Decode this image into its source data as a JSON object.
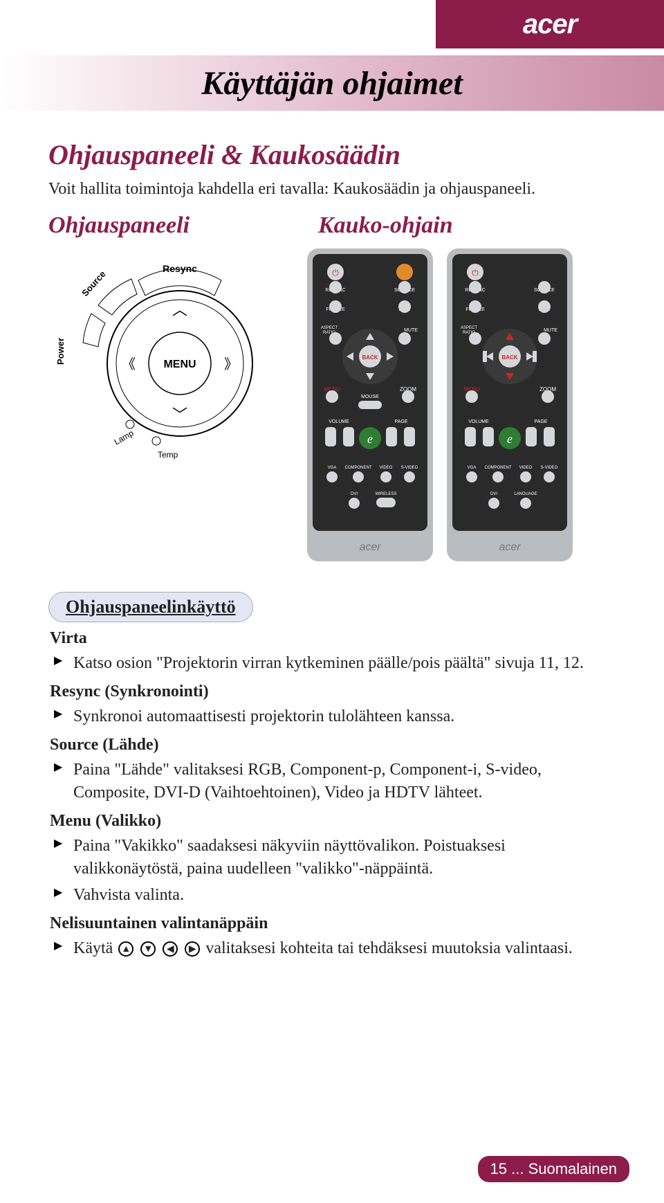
{
  "brand": "acer",
  "banner_title": "Käyttäjän ohjaimet",
  "section_title": "Ohjauspaneeli & Kaukosäädin",
  "intro": "Voit hallita toimintoja kahdella eri tavalla: Kaukosäädin ja ohjauspaneeli.",
  "col_left": "Ohjauspaneeli",
  "col_right": "Kauko-ohjain",
  "panel": {
    "resync": "Resync",
    "source": "Source",
    "power": "Power",
    "menu": "MENU",
    "lamp": "Lamp",
    "temp": "Temp"
  },
  "remote": {
    "labels": [
      "RESYNC",
      "SOURCE",
      "FREEZE",
      "HIDE",
      "ASPECT RATIO",
      "MUTE",
      "BACK",
      "MENU",
      "ZOOM",
      "MOUSE",
      "VOLUME",
      "PAGE",
      "VGA",
      "COMPONENT",
      "VIDEO",
      "S-VIDEO",
      "DVI",
      "WIRELESS",
      "LANGUAGE"
    ],
    "body_color": "#2a2a2a",
    "frame_color": "#b9bcc1",
    "accent_color": "#c62828",
    "e_button_color": "#2e7d32",
    "button_color": "#d6d7db"
  },
  "pill_label": "Ohjauspaneelinkäyttö",
  "items": [
    {
      "head": "Virta",
      "bullets": [
        "Katso osion \"Projektorin virran kytkeminen päälle/pois päältä\" sivuja 11, 12."
      ]
    },
    {
      "head": "Resync (Synkronointi)",
      "bullets": [
        "Synkronoi automaattisesti projektorin tulolähteen kanssa."
      ]
    },
    {
      "head": "Source (Lähde)",
      "bullets": [
        "Paina \"Lähde\" valitaksesi RGB, Component-p, Component-i, S-video, Composite, DVI-D (Vaihtoehtoinen), Video ja HDTV lähteet."
      ]
    },
    {
      "head": "Menu (Valikko)",
      "bullets": [
        "Paina \"Vakikko\" saadaksesi näkyviin näyttövalikon. Poistuaksesi valikkonäytöstä, paina uudelleen \"valikko\"-näppäintä.",
        "Vahvista valinta."
      ]
    },
    {
      "head": "Nelisuuntainen valintanäppäin",
      "bullets_html": "Käytä <span class='arrow-circle'>▲</span> <span class='arrow-circle'>▼</span> <span class='arrow-circle'>◀</span> <span class='arrow-circle'>▶</span> valitaksesi kohteita tai tehdäksesi muutoksia valintaasi."
    }
  ],
  "footer": "15 ... Suomalainen",
  "colors": {
    "brand_bar": "#8c1c4a",
    "pill_bg": "#e5e6f5"
  }
}
